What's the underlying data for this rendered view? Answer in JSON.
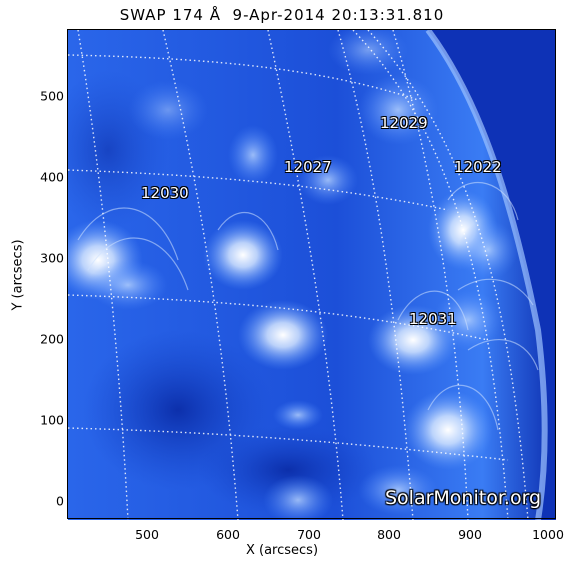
{
  "title": "SWAP 174 Å  9-Apr-2014 20:13:31.810",
  "axes": {
    "x_title": "X (arcsecs)",
    "y_title": "Y (arcsecs)",
    "x_ticks": [
      "500",
      "600",
      "700",
      "800",
      "900",
      "1000"
    ],
    "y_ticks": [
      "0",
      "100",
      "200",
      "300",
      "400",
      "500"
    ]
  },
  "active_regions": [
    {
      "id": "12029"
    },
    {
      "id": "12027"
    },
    {
      "id": "12022"
    },
    {
      "id": "12030"
    },
    {
      "id": "12031"
    }
  ],
  "watermark": "SolarMonitor.org",
  "colors": {
    "deep_blue": "#0a2fb8",
    "mid_blue": "#2c6ef0",
    "bright": "#e8f2ff",
    "background": "#ffffff"
  }
}
